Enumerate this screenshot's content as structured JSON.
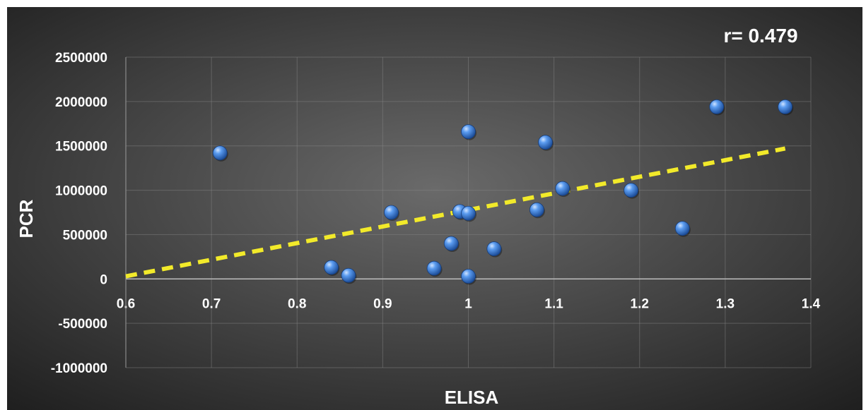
{
  "chart_data": {
    "type": "scatter",
    "title": "",
    "annotation": "r= 0.479",
    "xlabel": "ELISA",
    "ylabel": "PCR",
    "xlim": [
      0.6,
      1.4
    ],
    "ylim": [
      -1000000,
      2500000
    ],
    "x_ticks": [
      "0.6",
      "0.7",
      "0.8",
      "0.9",
      "1",
      "1.1",
      "1.2",
      "1.3",
      "1.4"
    ],
    "y_ticks": [
      "-1000000",
      "-500000",
      "0",
      "500000",
      "1000000",
      "1500000",
      "2000000",
      "2500000"
    ],
    "grid": true,
    "legend": "none",
    "points": [
      {
        "x": 0.71,
        "y": 1420000
      },
      {
        "x": 0.84,
        "y": 130000
      },
      {
        "x": 0.86,
        "y": 40000
      },
      {
        "x": 0.91,
        "y": 750000
      },
      {
        "x": 0.96,
        "y": 120000
      },
      {
        "x": 0.98,
        "y": 400000
      },
      {
        "x": 0.99,
        "y": 760000
      },
      {
        "x": 1.0,
        "y": 740000
      },
      {
        "x": 1.0,
        "y": 1660000
      },
      {
        "x": 1.0,
        "y": 30000
      },
      {
        "x": 1.03,
        "y": 340000
      },
      {
        "x": 1.08,
        "y": 780000
      },
      {
        "x": 1.09,
        "y": 1540000
      },
      {
        "x": 1.11,
        "y": 1020000
      },
      {
        "x": 1.19,
        "y": 1000000
      },
      {
        "x": 1.25,
        "y": 570000
      },
      {
        "x": 1.29,
        "y": 1940000
      },
      {
        "x": 1.37,
        "y": 1940000
      }
    ],
    "trendline": {
      "style": "dashed",
      "color": "#f2ea2a",
      "x": [
        0.6,
        1.37
      ],
      "y": [
        30000,
        1470000
      ]
    },
    "colors": {
      "background_center": "#6a6a6a",
      "background_edge": "#1e1e1e",
      "point": "#3f7fd6",
      "text": "#ffffff"
    }
  }
}
